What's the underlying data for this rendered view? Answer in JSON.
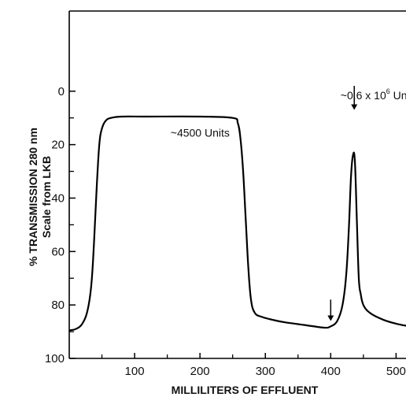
{
  "chart_data": {
    "type": "line",
    "title": "",
    "xlabel": "MILLILITERS OF EFFLUENT",
    "ylabel": "% TRANSMISSION 280 nm",
    "ylabel2": "Scale from LKB",
    "xlim": [
      0,
      520
    ],
    "ylim": [
      100,
      -30
    ],
    "y_inverted": true,
    "grid": false,
    "x_ticks": [
      "100",
      "200",
      "300",
      "400",
      "500"
    ],
    "x_tick_values": [
      100,
      200,
      300,
      400,
      500
    ],
    "y_ticks": [
      "0",
      "20",
      "40",
      "60",
      "80",
      "100"
    ],
    "y_tick_values": [
      0,
      20,
      40,
      60,
      80,
      100
    ],
    "series": [
      {
        "x": [
          0,
          10,
          20,
          28,
          34,
          38,
          42,
          46,
          50,
          56,
          64,
          80,
          120,
          200,
          250,
          258,
          262,
          266,
          270,
          274,
          278,
          284,
          295,
          310,
          330,
          360,
          390,
          400,
          410,
          418,
          424,
          428,
          431,
          434,
          437,
          440,
          443,
          446,
          450,
          460,
          480,
          500,
          520
        ],
        "y": [
          89.5,
          89,
          87,
          82,
          72,
          56,
          36,
          20,
          14,
          11,
          10,
          9.5,
          9.5,
          9.5,
          10,
          12,
          18,
          30,
          48,
          66,
          78,
          83,
          84.5,
          85.5,
          86.5,
          87.5,
          88.5,
          88,
          86,
          80,
          68,
          50,
          32,
          24,
          26,
          48,
          70,
          76,
          80,
          83,
          85.5,
          87,
          88
        ]
      }
    ],
    "annotations": [
      {
        "text": "~4500 Units",
        "x": 155,
        "y": 17
      },
      {
        "text": "~0.6 x 10",
        "sup": "6",
        "suffix": " Units",
        "x": 415,
        "y": 3
      }
    ],
    "arrows": [
      {
        "x": 400,
        "y_tail": 78,
        "y_head": 86
      },
      {
        "x": 436,
        "y_tail": -2,
        "y_head": 7
      }
    ]
  }
}
